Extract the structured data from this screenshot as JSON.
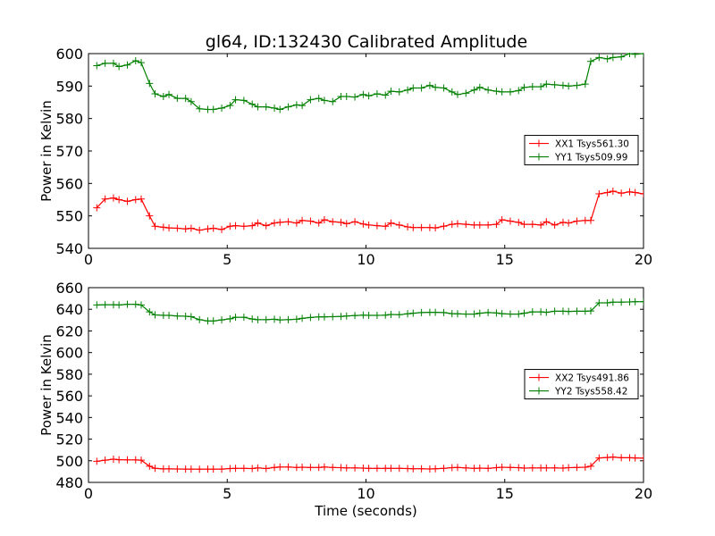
{
  "title": "gl64, ID:132430 Calibrated Amplitude",
  "chart_data": [
    {
      "type": "line",
      "xlabel": "",
      "ylabel": "Power in Kelvin",
      "xlim": [
        0,
        20
      ],
      "ylim": [
        540,
        600
      ],
      "xticks": [
        0,
        5,
        10,
        15,
        20
      ],
      "yticks": [
        540,
        550,
        560,
        570,
        580,
        590,
        600
      ],
      "grid": false,
      "legend": "center-right",
      "x": [
        0.3,
        0.6,
        0.9,
        1.1,
        1.4,
        1.7,
        1.9,
        2.2,
        2.4,
        2.7,
        2.9,
        3.2,
        3.5,
        3.7,
        4.0,
        4.3,
        4.5,
        4.8,
        5.1,
        5.3,
        5.6,
        5.9,
        6.1,
        6.4,
        6.7,
        6.9,
        7.2,
        7.5,
        7.7,
        8.0,
        8.3,
        8.5,
        8.8,
        9.1,
        9.3,
        9.6,
        9.9,
        10.1,
        10.4,
        10.7,
        10.9,
        11.2,
        11.5,
        11.7,
        12.0,
        12.3,
        12.5,
        12.8,
        13.1,
        13.3,
        13.6,
        13.9,
        14.1,
        14.4,
        14.7,
        14.9,
        15.2,
        15.5,
        15.7,
        16.0,
        16.3,
        16.5,
        16.8,
        17.1,
        17.3,
        17.6,
        17.9,
        18.1,
        18.4,
        18.7,
        18.9,
        19.2,
        19.5,
        19.7,
        20.0
      ],
      "series": [
        {
          "name": "XX1 Tsys561.30",
          "color": "#ff0000",
          "values": [
            552.5,
            555.2,
            555.5,
            555.0,
            554.5,
            555.0,
            555.2,
            550.0,
            546.8,
            546.5,
            546.3,
            546.2,
            546.0,
            546.2,
            545.6,
            546.0,
            546.2,
            545.8,
            546.8,
            547.0,
            546.8,
            547.0,
            547.8,
            547.0,
            547.8,
            548.0,
            548.2,
            547.8,
            548.6,
            548.4,
            547.8,
            548.8,
            548.2,
            548.0,
            547.6,
            548.2,
            547.5,
            547.2,
            547.0,
            546.8,
            547.8,
            547.2,
            546.6,
            546.4,
            546.4,
            546.4,
            546.3,
            546.8,
            547.4,
            547.6,
            547.4,
            547.2,
            547.2,
            547.2,
            547.4,
            548.8,
            548.4,
            548.0,
            547.4,
            547.4,
            547.2,
            548.2,
            547.2,
            548.0,
            547.8,
            548.4,
            548.6,
            548.6,
            556.8,
            557.2,
            557.6,
            557.0,
            557.4,
            557.2,
            556.8
          ]
        },
        {
          "name": "YY1 Tsys509.99",
          "color": "#008000",
          "values": [
            596.3,
            597.0,
            597.0,
            596.0,
            596.5,
            597.8,
            597.2,
            590.8,
            587.6,
            586.8,
            587.4,
            586.2,
            586.2,
            585.2,
            583.0,
            582.8,
            582.8,
            583.2,
            584.0,
            585.8,
            585.6,
            584.4,
            583.6,
            583.6,
            583.2,
            582.8,
            583.6,
            584.2,
            584.0,
            585.8,
            586.2,
            585.6,
            585.2,
            586.8,
            586.8,
            586.6,
            587.4,
            587.0,
            587.6,
            587.2,
            588.4,
            588.2,
            588.8,
            589.4,
            589.4,
            590.2,
            589.6,
            589.4,
            588.2,
            587.4,
            587.8,
            588.8,
            589.6,
            588.8,
            588.4,
            588.2,
            588.2,
            588.6,
            589.6,
            589.8,
            589.8,
            590.6,
            590.4,
            590.2,
            590.0,
            590.2,
            590.6,
            597.6,
            598.8,
            598.4,
            598.8,
            599.0,
            600.0,
            599.8,
            600.0
          ]
        }
      ]
    },
    {
      "type": "line",
      "xlabel": "Time (seconds)",
      "ylabel": "Power in Kelvin",
      "xlim": [
        0,
        20
      ],
      "ylim": [
        480,
        660
      ],
      "xticks": [
        0,
        5,
        10,
        15,
        20
      ],
      "yticks": [
        480,
        500,
        520,
        540,
        560,
        580,
        600,
        620,
        640,
        660
      ],
      "grid": false,
      "legend": "center-right",
      "x": [
        0.3,
        0.6,
        0.9,
        1.1,
        1.4,
        1.7,
        1.9,
        2.2,
        2.4,
        2.7,
        2.9,
        3.2,
        3.5,
        3.7,
        4.0,
        4.3,
        4.5,
        4.8,
        5.1,
        5.3,
        5.6,
        5.9,
        6.1,
        6.4,
        6.7,
        6.9,
        7.2,
        7.5,
        7.7,
        8.0,
        8.3,
        8.5,
        8.8,
        9.1,
        9.3,
        9.6,
        9.9,
        10.1,
        10.4,
        10.7,
        10.9,
        11.2,
        11.5,
        11.7,
        12.0,
        12.3,
        12.5,
        12.8,
        13.1,
        13.3,
        13.6,
        13.9,
        14.1,
        14.4,
        14.7,
        14.9,
        15.2,
        15.5,
        15.7,
        16.0,
        16.3,
        16.5,
        16.8,
        17.1,
        17.3,
        17.6,
        17.9,
        18.1,
        18.4,
        18.7,
        18.9,
        19.2,
        19.5,
        19.7,
        20.0
      ],
      "series": [
        {
          "name": "XX2 Tsys491.86",
          "color": "#ff0000",
          "values": [
            499.5,
            500.5,
            501.5,
            501.0,
            500.8,
            500.8,
            500.5,
            495.0,
            493.0,
            492.5,
            492.5,
            492.4,
            492.3,
            492.3,
            492.2,
            492.3,
            492.3,
            492.3,
            492.8,
            493.0,
            493.0,
            492.8,
            493.4,
            492.8,
            493.8,
            494.2,
            494.2,
            493.8,
            494.0,
            493.8,
            493.8,
            494.2,
            493.8,
            493.6,
            493.4,
            493.4,
            493.2,
            493.0,
            493.0,
            493.0,
            493.0,
            493.0,
            492.8,
            492.6,
            492.6,
            492.4,
            492.6,
            493.0,
            493.6,
            493.8,
            493.4,
            493.0,
            493.2,
            493.0,
            493.6,
            494.0,
            493.8,
            493.6,
            493.2,
            493.4,
            493.4,
            493.4,
            493.4,
            493.2,
            493.6,
            493.8,
            494.0,
            495.0,
            502.6,
            503.0,
            503.4,
            502.8,
            502.8,
            502.6,
            502.4
          ]
        },
        {
          "name": "YY2 Tsys558.42",
          "color": "#008000",
          "values": [
            644.0,
            644.2,
            644.2,
            644.0,
            644.6,
            644.6,
            644.0,
            637.6,
            634.8,
            634.4,
            634.4,
            633.8,
            633.6,
            633.2,
            630.4,
            629.2,
            629.2,
            630.2,
            631.2,
            632.6,
            632.6,
            631.0,
            630.4,
            630.4,
            630.8,
            630.2,
            630.4,
            630.8,
            631.6,
            632.4,
            633.0,
            633.0,
            633.2,
            633.4,
            633.8,
            634.2,
            634.6,
            634.4,
            634.4,
            634.6,
            635.2,
            635.0,
            635.8,
            636.4,
            637.0,
            637.2,
            637.2,
            637.0,
            636.0,
            635.8,
            635.6,
            635.6,
            636.4,
            637.0,
            636.6,
            636.0,
            635.6,
            635.6,
            636.4,
            637.6,
            637.6,
            637.2,
            638.2,
            638.2,
            638.0,
            638.2,
            638.2,
            638.4,
            646.0,
            646.0,
            646.6,
            646.6,
            646.8,
            647.0,
            647.0
          ]
        }
      ]
    }
  ]
}
